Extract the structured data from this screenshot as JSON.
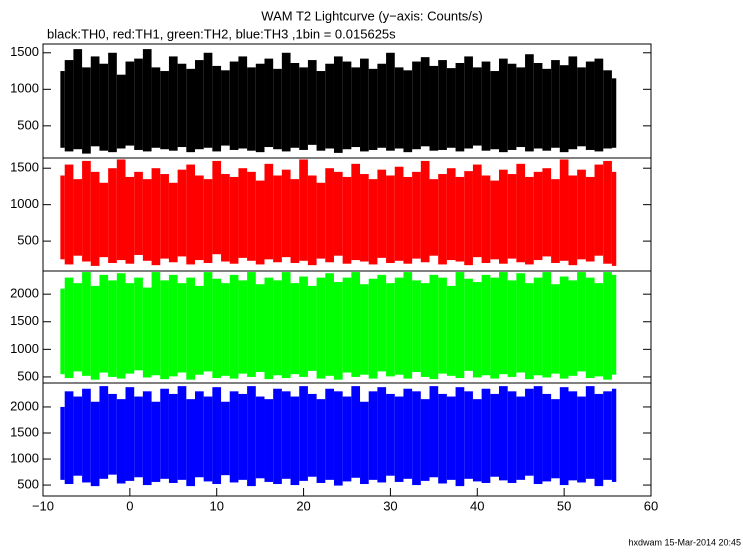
{
  "chart_data": [
    {
      "type": "range",
      "title": "WAM T2 Lightcurve (y−axis: Counts/s)",
      "subtitle": "black:TH0, red:TH1, green:TH2, blue:TH3 ,1bin = 0.015625s",
      "color": "#000000",
      "x": [
        -8,
        -7,
        -6,
        -5,
        -4,
        -3,
        -2,
        -1,
        0,
        1,
        2,
        3,
        4,
        5,
        6,
        7,
        8,
        9,
        10,
        11,
        12,
        13,
        14,
        15,
        16,
        17,
        18,
        19,
        20,
        21,
        22,
        23,
        24,
        25,
        26,
        27,
        28,
        29,
        30,
        31,
        32,
        33,
        34,
        35,
        36,
        37,
        38,
        39,
        40,
        41,
        42,
        43,
        44,
        45,
        46,
        47,
        48,
        49,
        50,
        51,
        52,
        53,
        54,
        55,
        56
      ],
      "high": [
        1250,
        1400,
        1550,
        1300,
        1450,
        1350,
        1500,
        1200,
        1380,
        1420,
        1550,
        1300,
        1250,
        1450,
        1350,
        1280,
        1400,
        1500,
        1320,
        1260,
        1380,
        1450,
        1300,
        1350,
        1420,
        1280,
        1500,
        1360,
        1300,
        1400,
        1250,
        1350,
        1450,
        1380,
        1300,
        1420,
        1280,
        1350,
        1500,
        1300,
        1260,
        1380,
        1440,
        1320,
        1400,
        1290,
        1360,
        1450,
        1300,
        1380,
        1250,
        1420,
        1350,
        1300,
        1480,
        1360,
        1280,
        1400,
        1330,
        1450,
        1300,
        1380,
        1420,
        1260,
        1150
      ],
      "low": [
        200,
        150,
        180,
        120,
        220,
        160,
        140,
        190,
        230,
        170,
        150,
        200,
        180,
        160,
        210,
        140,
        180,
        200,
        150,
        230,
        170,
        190,
        160,
        140,
        210,
        180,
        150,
        200,
        170,
        240,
        160,
        190,
        130,
        180,
        210,
        150,
        170,
        200,
        160,
        190,
        140,
        180,
        220,
        160,
        170,
        200,
        150,
        190,
        230,
        160,
        180,
        140,
        170,
        210,
        150,
        190,
        160,
        200,
        140,
        180,
        220,
        170,
        150,
        190,
        200
      ],
      "xlim": [
        -10,
        60
      ],
      "ylim": [
        60,
        1620
      ],
      "yticks": [
        500,
        1000,
        1500
      ]
    },
    {
      "type": "range",
      "color": "#ff0000",
      "x": [
        -8,
        -7,
        -6,
        -5,
        -4,
        -3,
        -2,
        -1,
        0,
        1,
        2,
        3,
        4,
        5,
        6,
        7,
        8,
        9,
        10,
        11,
        12,
        13,
        14,
        15,
        16,
        17,
        18,
        19,
        20,
        21,
        22,
        23,
        24,
        25,
        26,
        27,
        28,
        29,
        30,
        31,
        32,
        33,
        34,
        35,
        36,
        37,
        38,
        39,
        40,
        41,
        42,
        43,
        44,
        45,
        46,
        47,
        48,
        49,
        50,
        51,
        52,
        53,
        54,
        55,
        56
      ],
      "high": [
        1400,
        1550,
        1350,
        1600,
        1450,
        1300,
        1500,
        1620,
        1380,
        1450,
        1350,
        1500,
        1420,
        1300,
        1480,
        1550,
        1400,
        1350,
        1600,
        1420,
        1380,
        1500,
        1450,
        1330,
        1560,
        1400,
        1480,
        1350,
        1620,
        1400,
        1300,
        1500,
        1450,
        1380,
        1560,
        1420,
        1350,
        1480,
        1400,
        1520,
        1380,
        1450,
        1600,
        1350,
        1420,
        1500,
        1380,
        1460,
        1550,
        1400,
        1330,
        1480,
        1420,
        1560,
        1380,
        1450,
        1500,
        1350,
        1620,
        1400,
        1480,
        1380,
        1550,
        1600,
        1450
      ],
      "low": [
        250,
        180,
        300,
        220,
        160,
        280,
        200,
        240,
        190,
        310,
        230,
        170,
        260,
        210,
        290,
        180,
        240,
        200,
        320,
        220,
        190,
        270,
        230,
        180,
        250,
        210,
        280,
        200,
        230,
        170,
        260,
        210,
        300,
        190,
        240,
        220,
        180,
        270,
        200,
        230,
        190,
        260,
        210,
        300,
        180,
        240,
        220,
        170,
        280,
        200,
        250,
        190,
        260,
        210,
        180,
        240,
        290,
        200,
        230,
        170,
        250,
        220,
        300,
        190,
        160
      ],
      "xlim": [
        -10,
        60
      ],
      "ylim": [
        90,
        1640
      ],
      "yticks": [
        500,
        1000,
        1500
      ]
    },
    {
      "type": "range",
      "color": "#00ff00",
      "x": [
        -8,
        -7,
        -6,
        -5,
        -4,
        -3,
        -2,
        -1,
        0,
        1,
        2,
        3,
        4,
        5,
        6,
        7,
        8,
        9,
        10,
        11,
        12,
        13,
        14,
        15,
        16,
        17,
        18,
        19,
        20,
        21,
        22,
        23,
        24,
        25,
        26,
        27,
        28,
        29,
        30,
        31,
        32,
        33,
        34,
        35,
        36,
        37,
        38,
        39,
        40,
        41,
        42,
        43,
        44,
        45,
        46,
        47,
        48,
        49,
        50,
        51,
        52,
        53,
        54,
        55,
        56
      ],
      "high": [
        2100,
        2300,
        2200,
        2400,
        2150,
        2350,
        2250,
        2380,
        2200,
        2300,
        2120,
        2400,
        2250,
        2350,
        2200,
        2300,
        2150,
        2400,
        2280,
        2200,
        2350,
        2250,
        2400,
        2180,
        2300,
        2250,
        2400,
        2200,
        2320,
        2150,
        2300,
        2380,
        2220,
        2300,
        2400,
        2180,
        2280,
        2350,
        2200,
        2300,
        2400,
        2250,
        2200,
        2350,
        2300,
        2150,
        2400,
        2280,
        2220,
        2350,
        2300,
        2400,
        2250,
        2380,
        2200,
        2300,
        2400,
        2180,
        2320,
        2250,
        2400,
        2300,
        2200,
        2400,
        2350
      ],
      "low": [
        550,
        480,
        600,
        520,
        450,
        580,
        500,
        470,
        560,
        620,
        490,
        530,
        460,
        510,
        580,
        450,
        540,
        600,
        480,
        520,
        470,
        560,
        500,
        590,
        460,
        530,
        480,
        550,
        500,
        610,
        470,
        520,
        450,
        580,
        500,
        540,
        470,
        600,
        510,
        540,
        470,
        590,
        500,
        460,
        560,
        520,
        480,
        610,
        490,
        530,
        470,
        550,
        500,
        580,
        460,
        530,
        490,
        560,
        470,
        520,
        600,
        480,
        510,
        450,
        540
      ],
      "xlim": [
        -10,
        60
      ],
      "ylim": [
        390,
        2420
      ],
      "yticks": [
        500,
        1000,
        1500,
        2000
      ]
    },
    {
      "type": "range",
      "color": "#0000ff",
      "x": [
        -8,
        -7,
        -6,
        -5,
        -4,
        -3,
        -2,
        -1,
        0,
        1,
        2,
        3,
        4,
        5,
        6,
        7,
        8,
        9,
        10,
        11,
        12,
        13,
        14,
        15,
        16,
        17,
        18,
        19,
        20,
        21,
        22,
        23,
        24,
        25,
        26,
        27,
        28,
        29,
        30,
        31,
        32,
        33,
        34,
        35,
        36,
        37,
        38,
        39,
        40,
        41,
        42,
        43,
        44,
        45,
        46,
        47,
        48,
        49,
        50,
        51,
        52,
        53,
        54,
        55,
        56
      ],
      "high": [
        2000,
        2300,
        2200,
        2350,
        2100,
        2400,
        2250,
        2150,
        2380,
        2200,
        2300,
        2100,
        2350,
        2250,
        2400,
        2150,
        2300,
        2200,
        2380,
        2100,
        2300,
        2250,
        2400,
        2200,
        2150,
        2350,
        2300,
        2200,
        2400,
        2250,
        2150,
        2350,
        2300,
        2200,
        2400,
        2100,
        2300,
        2380,
        2250,
        2200,
        2350,
        2300,
        2150,
        2400,
        2250,
        2200,
        2380,
        2300,
        2150,
        2350,
        2250,
        2400,
        2300,
        2200,
        2350,
        2400,
        2250,
        2150,
        2380,
        2300,
        2200,
        2400,
        2250,
        2300,
        2350
      ],
      "low": [
        600,
        520,
        680,
        550,
        480,
        620,
        700,
        530,
        580,
        650,
        500,
        560,
        620,
        540,
        600,
        480,
        650,
        570,
        520,
        690,
        550,
        600,
        480,
        630,
        560,
        520,
        620,
        500,
        580,
        660,
        540,
        600,
        490,
        570,
        640,
        520,
        600,
        550,
        680,
        560,
        620,
        500,
        580,
        650,
        530,
        600,
        480,
        620,
        570,
        540,
        660,
        590,
        540,
        600,
        680,
        520,
        570,
        630,
        500,
        590,
        550,
        620,
        480,
        600,
        560
      ],
      "xlim": [
        -10,
        60
      ],
      "ylim": [
        290,
        2460
      ],
      "yticks": [
        500,
        1000,
        1500,
        2000
      ],
      "xticks": [
        {
          "value": -10,
          "label": "−10"
        },
        0,
        10,
        20,
        30,
        40,
        50,
        60
      ]
    }
  ],
  "footer": "hxdwam 15-Mar-2014 20:45"
}
